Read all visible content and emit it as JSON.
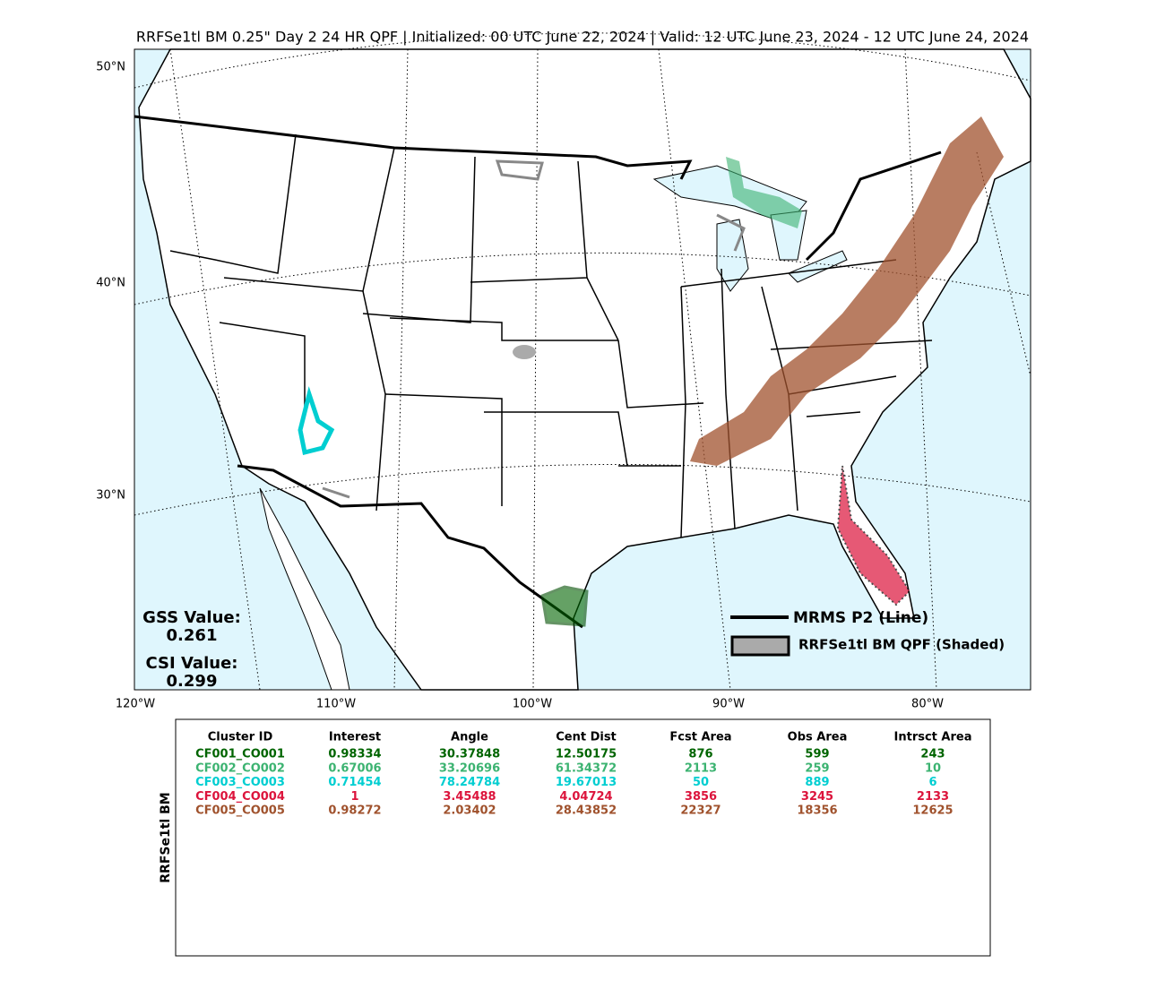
{
  "header": {
    "title": "RRFSe1tl BM 0.25\" Day 2 24 HR QPF | Initialized: 00 UTC June 22, 2024 | Valid: 12 UTC June 23, 2024 - 12 UTC June 24, 2024"
  },
  "map": {
    "lat_labels": [
      "50°N",
      "40°N",
      "30°N"
    ],
    "lon_labels": [
      "120°W",
      "110°W",
      "100°W",
      "90°W",
      "80°W"
    ],
    "legend": {
      "line": "MRMS P2 (Line)",
      "shaded": "RRFSe1tl BM QPF (Shaded)"
    },
    "scores": [
      {
        "label": "GSS Value:",
        "value": "0.261"
      },
      {
        "label": "CSI Value:",
        "value": "0.299"
      }
    ]
  },
  "table": {
    "side_label": "RRFSe1tl BM",
    "columns": [
      "Cluster ID",
      "Interest",
      "Angle",
      "Cent Dist",
      "Fcst Area",
      "Obs Area",
      "Intrsct Area"
    ],
    "rows": [
      {
        "color": "#006400",
        "cells": [
          "CF001_CO001",
          "0.98334",
          "30.37848",
          "12.50175",
          "876",
          "599",
          "243"
        ]
      },
      {
        "color": "#3cb371",
        "cells": [
          "CF002_CO002",
          "0.67006",
          "33.20696",
          "61.34372",
          "2113",
          "259",
          "10"
        ]
      },
      {
        "color": "#00ced1",
        "cells": [
          "CF003_CO003",
          "0.71454",
          "78.24784",
          "19.67013",
          "50",
          "889",
          "6"
        ]
      },
      {
        "color": "#dc143c",
        "cells": [
          "CF004_CO004",
          "1",
          "3.45488",
          "4.04724",
          "3856",
          "3245",
          "2133"
        ]
      },
      {
        "color": "#a0522d",
        "cells": [
          "CF005_CO005",
          "0.98272",
          "2.03402",
          "28.43852",
          "22327",
          "18356",
          "12625"
        ]
      }
    ]
  }
}
